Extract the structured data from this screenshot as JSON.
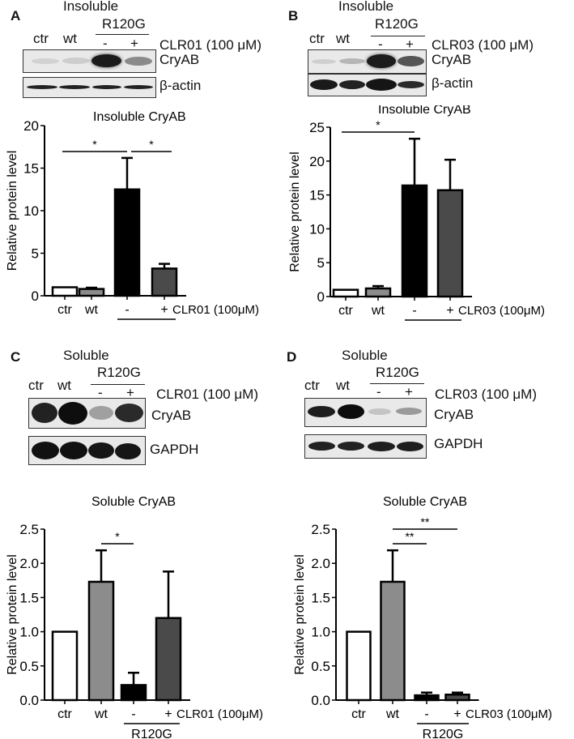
{
  "panels": {
    "A": {
      "letter": "A",
      "blot_title": "Insoluble",
      "lanes": [
        "ctr",
        "wt",
        "-",
        "+"
      ],
      "group_label": "R120G",
      "treatment": "CLR01 (100 μM)",
      "rows": [
        "CryAB",
        "β-actin"
      ]
    },
    "B": {
      "letter": "B",
      "blot_title": "Insoluble",
      "lanes": [
        "ctr",
        "wt",
        "-",
        "+"
      ],
      "group_label": "R120G",
      "treatment": "CLR03 (100 μM)",
      "rows": [
        "CryAB",
        "β-actin"
      ]
    },
    "C": {
      "letter": "C",
      "blot_title": "Soluble",
      "lanes": [
        "ctr",
        "wt",
        "-",
        "+"
      ],
      "group_label": "R120G",
      "treatment": "CLR01 (100 μM)",
      "rows": [
        "CryAB",
        "GAPDH"
      ]
    },
    "D": {
      "letter": "D",
      "blot_title": "Soluble",
      "lanes": [
        "ctr",
        "wt",
        "-",
        "+"
      ],
      "group_label": "R120G",
      "treatment": "CLR03 (100 μM)",
      "rows": [
        "CryAB",
        "GAPDH"
      ]
    }
  },
  "colors": {
    "ctr": "#ffffff",
    "wt": "#8c8c8c",
    "r120g_minus": "#000000",
    "r120g_plus": "#4a4a4a",
    "axis": "#000000"
  },
  "chart_data": [
    {
      "panel": "A",
      "type": "bar",
      "title": "Insoluble CryAB",
      "xlabel": "",
      "ylabel": "Relative protein level",
      "categories": [
        "ctr",
        "wt",
        "-",
        "+"
      ],
      "category_group": {
        "label": "R120G",
        "members": [
          "-",
          "+"
        ]
      },
      "treatment_label": "CLR01 (100μM)",
      "values": [
        1.0,
        0.8,
        12.5,
        3.2
      ],
      "errors": [
        0.0,
        0.15,
        3.7,
        0.55
      ],
      "ylim": [
        0,
        20
      ],
      "yticks": [
        "0",
        "5",
        "10",
        "15",
        "20"
      ],
      "significance": [
        {
          "from": "ctr",
          "to": "-",
          "label": "*"
        },
        {
          "from": "-",
          "to": "+",
          "label": "*"
        }
      ],
      "grid": false,
      "legend": "none"
    },
    {
      "panel": "B",
      "type": "bar",
      "title": "Insoluble CryAB",
      "xlabel": "",
      "ylabel": "Relative protein level",
      "categories": [
        "ctr",
        "wt",
        "-",
        "+"
      ],
      "category_group": {
        "label": "R120G",
        "members": [
          "-",
          "+"
        ]
      },
      "treatment_label": "CLR03 (100μM)",
      "values": [
        1.0,
        1.2,
        16.4,
        15.7
      ],
      "errors": [
        0.0,
        0.35,
        6.9,
        4.5
      ],
      "ylim": [
        0,
        25
      ],
      "yticks": [
        "0",
        "5",
        "10",
        "15",
        "20",
        "25"
      ],
      "significance": [
        {
          "from": "ctr",
          "to": "-",
          "label": "*"
        }
      ],
      "grid": false,
      "legend": "none"
    },
    {
      "panel": "C",
      "type": "bar",
      "title": "Soluble CryAB",
      "xlabel": "",
      "ylabel": "Relative protein level",
      "categories": [
        "ctr",
        "wt",
        "-",
        "+"
      ],
      "category_group": {
        "label": "R120G",
        "members": [
          "-",
          "+"
        ]
      },
      "treatment_label": "CLR01 (100μM)",
      "values": [
        1.0,
        1.73,
        0.22,
        1.2
      ],
      "errors": [
        0.0,
        0.46,
        0.18,
        0.68
      ],
      "ylim": [
        0,
        2.5
      ],
      "yticks": [
        "0.0",
        "0.5",
        "1.0",
        "1.5",
        "2.0",
        "2.5"
      ],
      "significance": [
        {
          "from": "wt",
          "to": "-",
          "label": "*"
        }
      ],
      "grid": false,
      "legend": "none"
    },
    {
      "panel": "D",
      "type": "bar",
      "title": "Soluble CryAB",
      "xlabel": "",
      "ylabel": "Relative protein level",
      "categories": [
        "ctr",
        "wt",
        "-",
        "+"
      ],
      "category_group": {
        "label": "R120G",
        "members": [
          "-",
          "+"
        ]
      },
      "treatment_label": "CLR03 (100μM)",
      "values": [
        1.0,
        1.73,
        0.07,
        0.08
      ],
      "errors": [
        0.0,
        0.46,
        0.04,
        0.03
      ],
      "ylim": [
        0,
        2.5
      ],
      "yticks": [
        "0.0",
        "0.5",
        "1.0",
        "1.5",
        "2.0",
        "2.5"
      ],
      "significance": [
        {
          "from": "wt",
          "to": "-",
          "label": "**"
        },
        {
          "from": "wt",
          "to": "+",
          "label": "**"
        }
      ],
      "grid": false,
      "legend": "none"
    }
  ]
}
